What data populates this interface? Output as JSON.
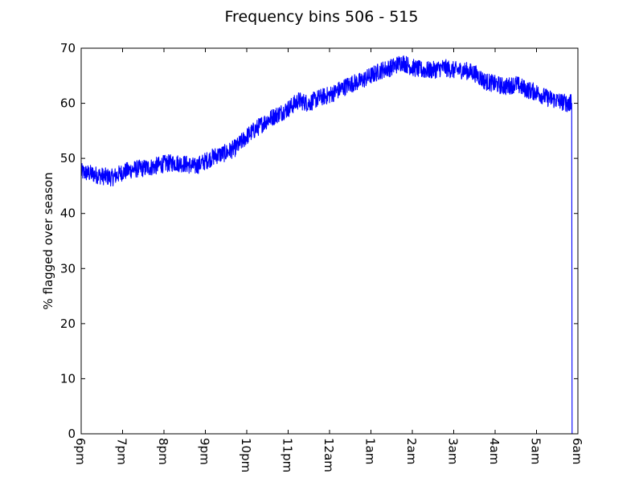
{
  "chart_data": {
    "type": "line",
    "title": "Frequency bins 506 - 515",
    "xlabel": "",
    "ylabel": "% flagged over season",
    "xlim": [
      0,
      12
    ],
    "ylim": [
      0,
      70
    ],
    "x_tick_labels": [
      "6pm",
      "7pm",
      "8pm",
      "9pm",
      "10pm",
      "11pm",
      "12am",
      "1am",
      "2am",
      "3am",
      "4am",
      "5am",
      "6am"
    ],
    "y_ticks": [
      0,
      10,
      20,
      30,
      40,
      50,
      60,
      70
    ],
    "y_tick_labels": [
      "0",
      "10",
      "20",
      "30",
      "40",
      "50",
      "60",
      "70"
    ],
    "grid": false,
    "legend": "none",
    "series": [
      {
        "color": "#0000ff",
        "x": [
          0,
          0.25,
          0.5,
          0.75,
          1.0,
          1.25,
          1.5,
          1.75,
          2.0,
          2.25,
          2.5,
          2.75,
          3.0,
          3.25,
          3.5,
          3.75,
          4.0,
          4.25,
          4.5,
          4.75,
          5.0,
          5.25,
          5.5,
          5.75,
          6.0,
          6.25,
          6.5,
          6.75,
          7.0,
          7.25,
          7.5,
          7.75,
          8.0,
          8.25,
          8.5,
          8.75,
          9.0,
          9.25,
          9.5,
          9.75,
          10.0,
          10.25,
          10.5,
          10.75,
          11.0,
          11.25,
          11.5,
          11.75,
          11.85,
          11.86
        ],
        "y": [
          47.5,
          47.2,
          46.8,
          46.5,
          47.5,
          48.0,
          48.2,
          48.5,
          49.0,
          49.2,
          49.0,
          48.5,
          49.5,
          50.5,
          51.0,
          52.0,
          54.0,
          55.5,
          57.0,
          58.0,
          59.0,
          60.5,
          60.0,
          61.0,
          61.5,
          62.5,
          63.5,
          64.0,
          65.0,
          66.0,
          66.5,
          67.5,
          66.5,
          66.0,
          66.0,
          66.5,
          66.0,
          66.0,
          65.5,
          64.0,
          63.5,
          63.0,
          63.5,
          62.5,
          62.0,
          61.0,
          60.5,
          60.0,
          60.0,
          0
        ]
      }
    ]
  }
}
